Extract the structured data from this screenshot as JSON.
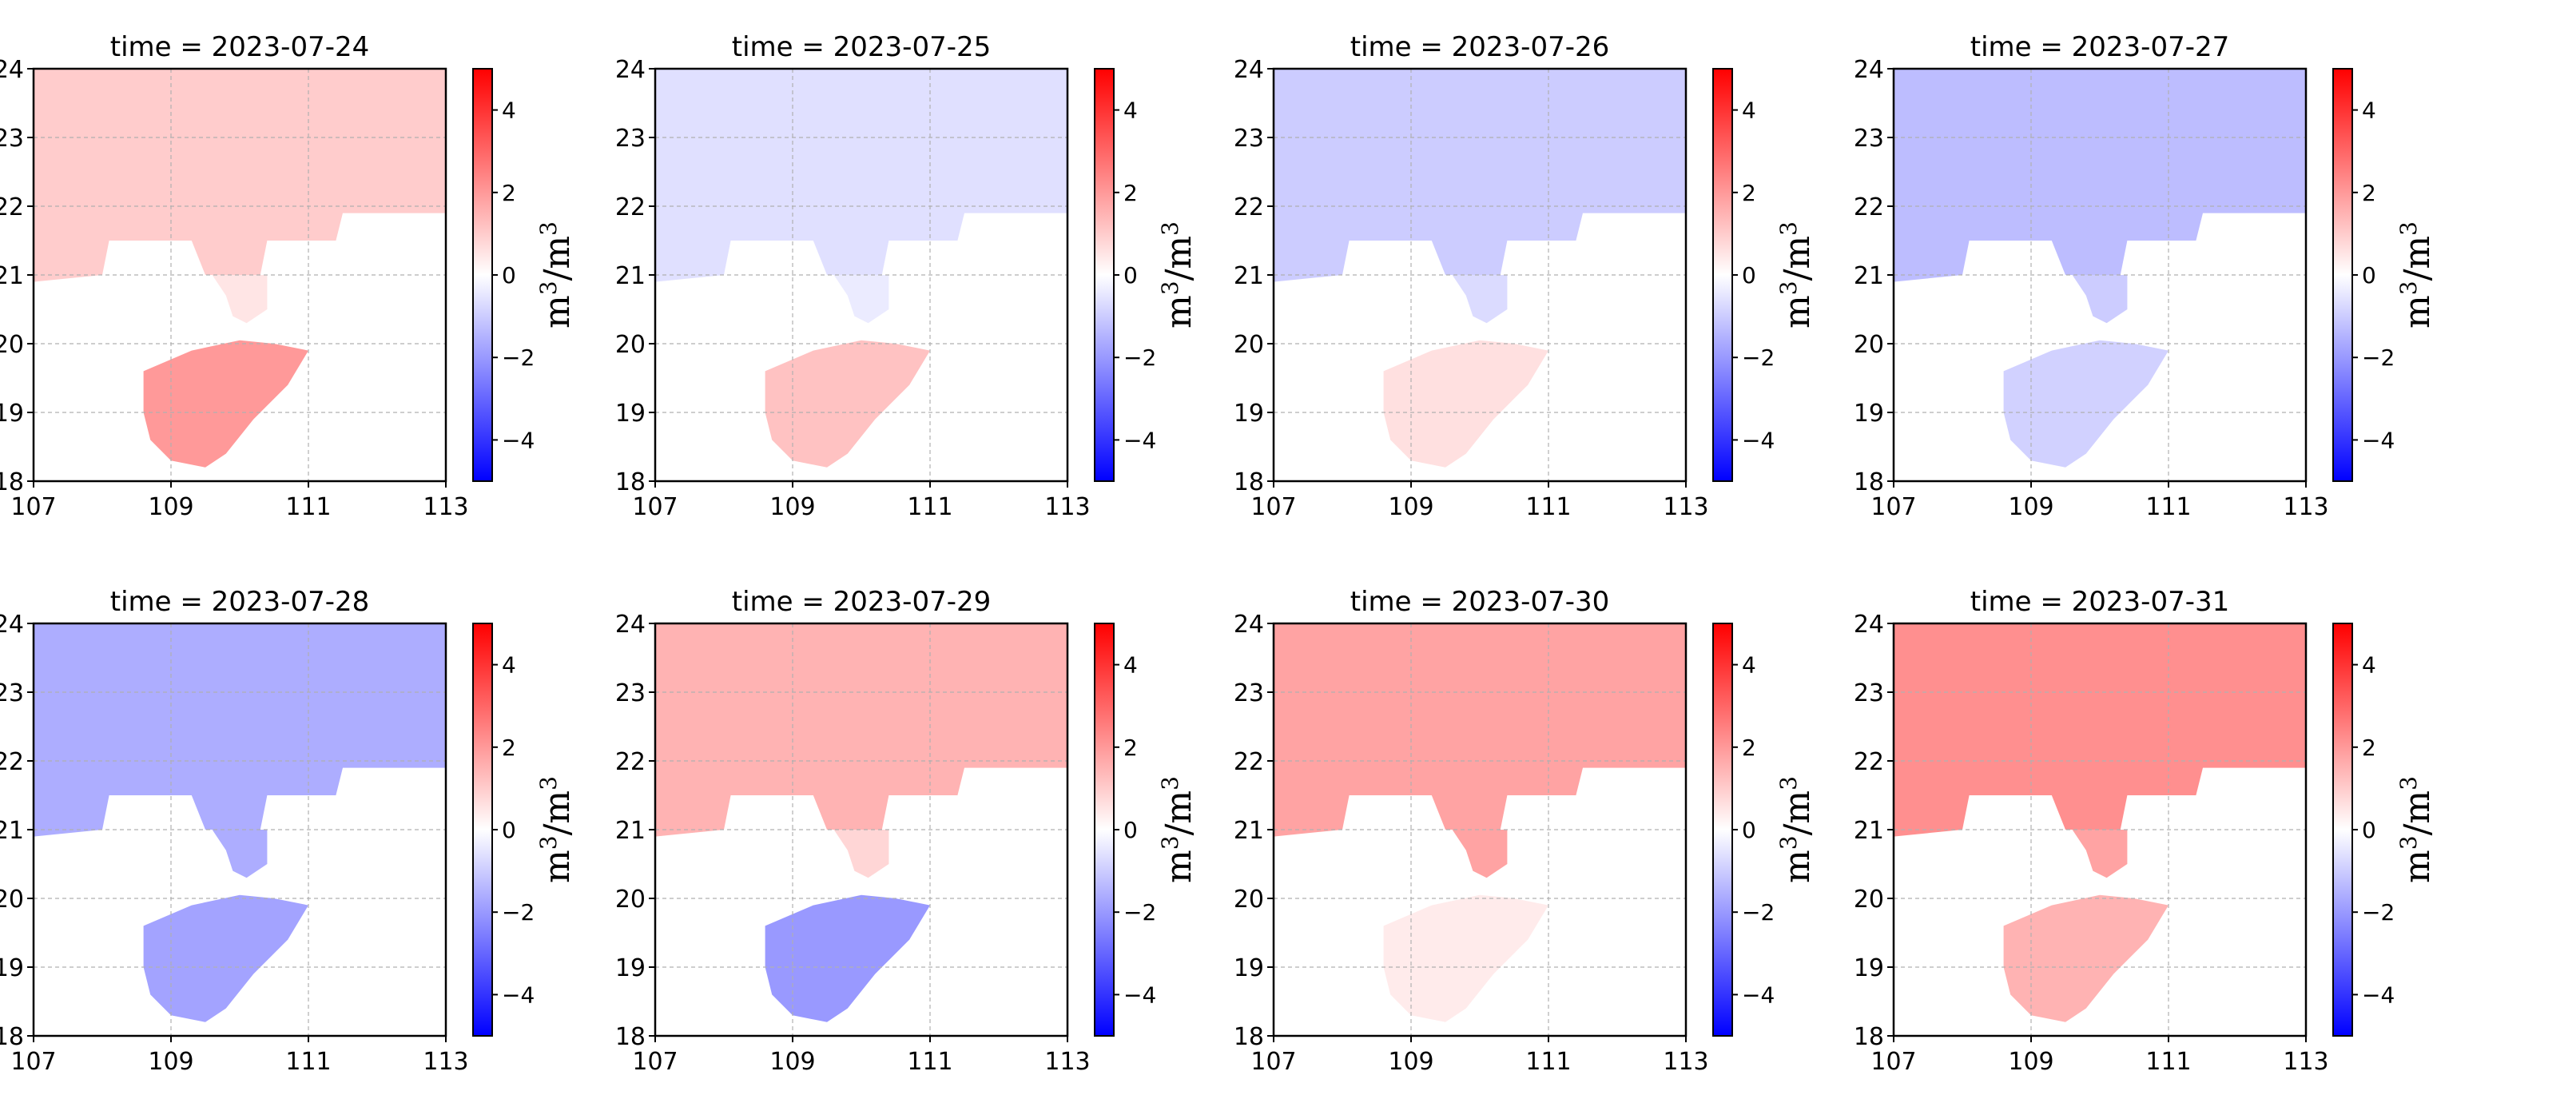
{
  "figure": {
    "colormap": {
      "low": "#0000ff",
      "mid": "#ffffff",
      "high": "#ff0000"
    },
    "gridline_color": "#b0b0b0",
    "colorbar": {
      "label_base": "m",
      "label_sup1": "3",
      "label_slash": "/",
      "label_sup2": "3",
      "range": [
        -5,
        5
      ],
      "ticks": [
        "4",
        "2",
        "0",
        "−2",
        "−4"
      ],
      "tick_values": [
        4,
        2,
        0,
        -2,
        -4
      ]
    }
  },
  "chart_data": [
    {
      "type": "heatmap",
      "title": "time = 2023-07-24",
      "xlim": [
        107,
        113
      ],
      "ylim": [
        18,
        24
      ],
      "xticks": [
        "107",
        "109",
        "111",
        "113"
      ],
      "yticks": [
        "24",
        "23",
        "22",
        "21",
        "20",
        "19",
        "18"
      ],
      "xtick_values": [
        107,
        109,
        111,
        113
      ],
      "ytick_values": [
        24,
        23,
        22,
        21,
        20,
        19,
        18
      ],
      "grid": true,
      "values": {
        "north": 1.0,
        "hainan": 2.0,
        "tail": 0.5
      }
    },
    {
      "type": "heatmap",
      "title": "time = 2023-07-25",
      "xlim": [
        107,
        113
      ],
      "ylim": [
        18,
        24
      ],
      "xticks": [
        "107",
        "109",
        "111",
        "113"
      ],
      "yticks": [
        "24",
        "23",
        "22",
        "21",
        "20",
        "19",
        "18"
      ],
      "xtick_values": [
        107,
        109,
        111,
        113
      ],
      "ytick_values": [
        24,
        23,
        22,
        21,
        20,
        19,
        18
      ],
      "grid": true,
      "values": {
        "north": -0.6,
        "hainan": 1.2,
        "tail": -0.4
      }
    },
    {
      "type": "heatmap",
      "title": "time = 2023-07-26",
      "xlim": [
        107,
        113
      ],
      "ylim": [
        18,
        24
      ],
      "xticks": [
        "107",
        "109",
        "111",
        "113"
      ],
      "yticks": [
        "24",
        "23",
        "22",
        "21",
        "20",
        "19",
        "18"
      ],
      "xtick_values": [
        107,
        109,
        111,
        113
      ],
      "ytick_values": [
        24,
        23,
        22,
        21,
        20,
        19,
        18
      ],
      "grid": true,
      "values": {
        "north": -1.0,
        "hainan": 0.6,
        "tail": -0.7
      }
    },
    {
      "type": "heatmap",
      "title": "time = 2023-07-27",
      "xlim": [
        107,
        113
      ],
      "ylim": [
        18,
        24
      ],
      "xticks": [
        "107",
        "109",
        "111",
        "113"
      ],
      "yticks": [
        "24",
        "23",
        "22",
        "21",
        "20",
        "19",
        "18"
      ],
      "xtick_values": [
        107,
        109,
        111,
        113
      ],
      "ytick_values": [
        24,
        23,
        22,
        21,
        20,
        19,
        18
      ],
      "grid": true,
      "values": {
        "north": -1.3,
        "hainan": -0.9,
        "tail": -1.0
      }
    },
    {
      "type": "heatmap",
      "title": "time = 2023-07-28",
      "xlim": [
        107,
        113
      ],
      "ylim": [
        18,
        24
      ],
      "xticks": [
        "107",
        "109",
        "111",
        "113"
      ],
      "yticks": [
        "24",
        "23",
        "22",
        "21",
        "20",
        "19",
        "18"
      ],
      "xtick_values": [
        107,
        109,
        111,
        113
      ],
      "ytick_values": [
        24,
        23,
        22,
        21,
        20,
        19,
        18
      ],
      "grid": true,
      "values": {
        "north": -1.6,
        "hainan": -1.8,
        "tail": -1.6
      }
    },
    {
      "type": "heatmap",
      "title": "time = 2023-07-29",
      "xlim": [
        107,
        113
      ],
      "ylim": [
        18,
        24
      ],
      "xticks": [
        "107",
        "109",
        "111",
        "113"
      ],
      "yticks": [
        "24",
        "23",
        "22",
        "21",
        "20",
        "19",
        "18"
      ],
      "xtick_values": [
        107,
        109,
        111,
        113
      ],
      "ytick_values": [
        24,
        23,
        22,
        21,
        20,
        19,
        18
      ],
      "grid": true,
      "values": {
        "north": 1.5,
        "hainan": -2.0,
        "tail": 0.8
      }
    },
    {
      "type": "heatmap",
      "title": "time = 2023-07-30",
      "xlim": [
        107,
        113
      ],
      "ylim": [
        18,
        24
      ],
      "xticks": [
        "107",
        "109",
        "111",
        "113"
      ],
      "yticks": [
        "24",
        "23",
        "22",
        "21",
        "20",
        "19",
        "18"
      ],
      "xtick_values": [
        107,
        109,
        111,
        113
      ],
      "ytick_values": [
        24,
        23,
        22,
        21,
        20,
        19,
        18
      ],
      "grid": true,
      "values": {
        "north": 1.8,
        "hainan": 0.4,
        "tail": 1.8
      }
    },
    {
      "type": "heatmap",
      "title": "time = 2023-07-31",
      "xlim": [
        107,
        113
      ],
      "ylim": [
        18,
        24
      ],
      "xticks": [
        "107",
        "109",
        "111",
        "113"
      ],
      "yticks": [
        "24",
        "23",
        "22",
        "21",
        "20",
        "19",
        "18"
      ],
      "xtick_values": [
        107,
        109,
        111,
        113
      ],
      "ytick_values": [
        24,
        23,
        22,
        21,
        20,
        19,
        18
      ],
      "grid": true,
      "values": {
        "north": 2.2,
        "hainan": 1.5,
        "tail": 1.8
      }
    }
  ]
}
